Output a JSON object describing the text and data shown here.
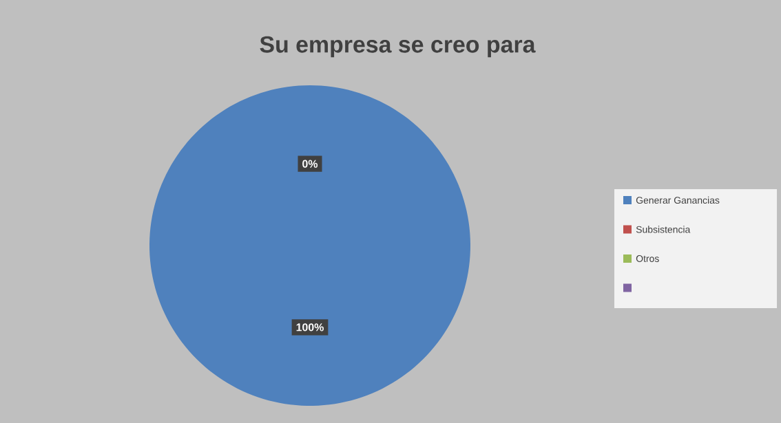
{
  "chart_data": {
    "type": "pie",
    "title": "Su empresa se creo para",
    "categories": [
      "Generar Ganancias",
      "Subsistencia",
      "Otros",
      null
    ],
    "values": [
      100,
      0,
      0,
      0
    ],
    "colors": [
      "#4f81bd",
      "#c0504d",
      "#9bbb59",
      "#8064a2"
    ],
    "value_labels": [
      "100%",
      "0%",
      null,
      null
    ],
    "legend": "right"
  }
}
